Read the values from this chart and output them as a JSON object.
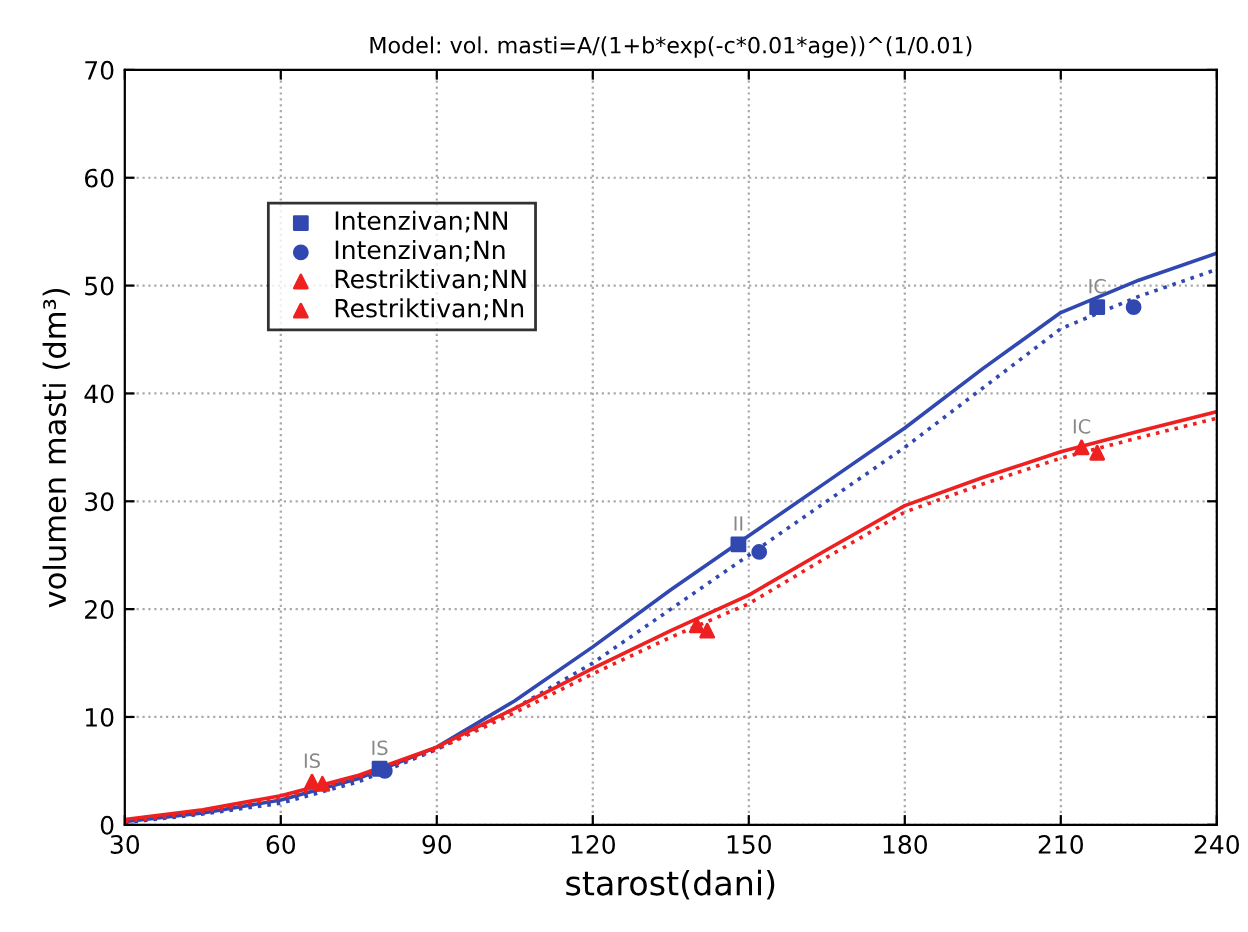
{
  "chart_data": {
    "type": "line",
    "title": "Model: vol. masti=A/(1+b*exp(-c*0.01*age))^(1/0.01)",
    "xlabel": "starost(dani)",
    "ylabel": "volumen masti (dm³)",
    "xlim": [
      30,
      240
    ],
    "ylim": [
      0,
      70
    ],
    "xticks": [
      30,
      60,
      90,
      120,
      150,
      180,
      210,
      240
    ],
    "yticks": [
      0,
      10,
      20,
      30,
      40,
      50,
      60,
      70
    ],
    "grid": true,
    "legend": "top left",
    "series": [
      {
        "color": "#3048b0",
        "line_style": "solid",
        "marker": "none",
        "x": [
          30,
          45,
          60,
          75,
          90,
          105,
          120,
          135,
          150,
          165,
          180,
          195,
          210,
          225,
          240
        ],
        "values": [
          0.3,
          1.1,
          2.3,
          4.3,
          7.2,
          11.5,
          16.5,
          21.8,
          26.8,
          31.8,
          36.8,
          42.3,
          47.5,
          50.5,
          53
        ]
      },
      {
        "color": "#3048b0",
        "line_style": "dotted",
        "marker": "none",
        "x": [
          30,
          45,
          60,
          75,
          90,
          105,
          120,
          135,
          150,
          165,
          180,
          195,
          210,
          225,
          240
        ],
        "values": [
          0.2,
          1,
          2,
          4,
          7,
          10.8,
          15,
          20,
          25,
          30,
          35,
          40.5,
          46,
          49,
          51.5
        ]
      },
      {
        "color": "#ee2020",
        "line_style": "solid",
        "marker": "none",
        "x": [
          30,
          45,
          60,
          75,
          90,
          105,
          120,
          135,
          150,
          165,
          180,
          195,
          210,
          225,
          240
        ],
        "values": [
          0.5,
          1.4,
          2.7,
          4.6,
          7.2,
          10.8,
          14.5,
          18,
          21.3,
          25.5,
          29.6,
          32.2,
          34.6,
          36.5,
          38.3
        ]
      },
      {
        "color": "#ee2020",
        "line_style": "dotted",
        "marker": "none",
        "x": [
          30,
          45,
          60,
          75,
          90,
          105,
          120,
          135,
          150,
          165,
          180,
          195,
          210,
          225,
          240
        ],
        "values": [
          0.3,
          1.2,
          2.5,
          4.4,
          7,
          10.4,
          14,
          17.4,
          20.5,
          24.8,
          29,
          31.6,
          34,
          35.9,
          37.7
        ]
      },
      {
        "type": "scatter",
        "name": "Intenzivan;NN",
        "color": "#3048b0",
        "marker": "square",
        "x": [
          79,
          148,
          217
        ],
        "values": [
          5.2,
          26,
          48
        ]
      },
      {
        "type": "scatter",
        "name": "Intenzivan;Nn",
        "color": "#3048b0",
        "marker": "circle",
        "x": [
          80,
          152,
          224
        ],
        "values": [
          5,
          25.3,
          48
        ]
      },
      {
        "type": "scatter",
        "name": "Restriktivan;NN",
        "color": "#ee2020",
        "marker": "triangle",
        "x": [
          66,
          140,
          214
        ],
        "values": [
          4,
          18.5,
          35
        ]
      },
      {
        "type": "scatter",
        "name": "Restriktivan;Nn",
        "color": "#ee2020",
        "marker": "triangle",
        "x": [
          68,
          142,
          217
        ],
        "values": [
          3.8,
          18,
          34.5
        ]
      }
    ],
    "annotations": [
      {
        "text": "IS",
        "x": 66,
        "y": 4
      },
      {
        "text": "IS",
        "x": 79,
        "y": 5.2
      },
      {
        "text": "II",
        "x": 148,
        "y": 26
      },
      {
        "text": "IC",
        "x": 217,
        "y": 48
      },
      {
        "text": "IC",
        "x": 214,
        "y": 35
      }
    ]
  }
}
